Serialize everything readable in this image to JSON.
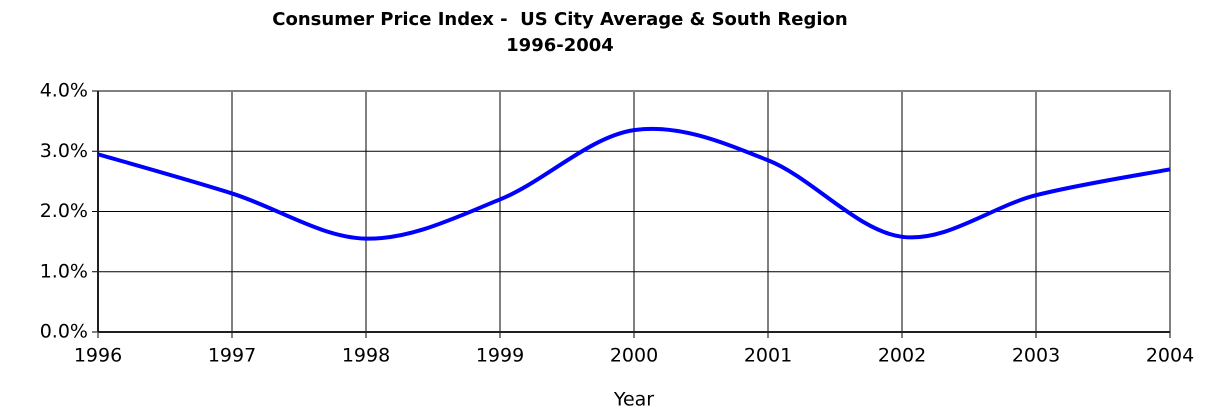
{
  "chart_data": {
    "type": "line",
    "title": "Consumer Price Index -  US City Average & South Region",
    "subtitle": "1996-2004",
    "x_label": "Year",
    "x": [
      1996,
      1997,
      1998,
      1999,
      2000,
      2001,
      2002,
      2003,
      2004
    ],
    "series": [
      {
        "name": "CPI",
        "color": "#0000ff",
        "values": [
          2.95,
          2.3,
          1.55,
          2.2,
          3.35,
          2.85,
          1.58,
          2.27,
          2.7
        ]
      }
    ],
    "xlim": [
      1996,
      2004
    ],
    "xticks": [
      1996,
      1997,
      1998,
      1999,
      2000,
      2001,
      2002,
      2003,
      2004
    ],
    "ylim": [
      0,
      4
    ],
    "yticks": [
      {
        "value": 0,
        "label": "0.0%"
      },
      {
        "value": 1,
        "label": "1.0%"
      },
      {
        "value": 2,
        "label": "2.0%"
      },
      {
        "value": 3,
        "label": "3.0%"
      },
      {
        "value": 4,
        "label": "4.0%"
      }
    ],
    "grid": true,
    "smooth": true
  }
}
